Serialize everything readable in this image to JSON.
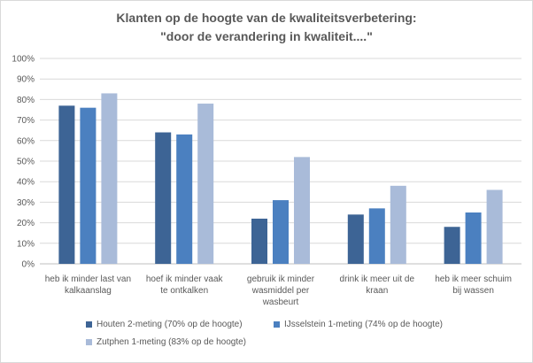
{
  "chart_data": {
    "type": "bar",
    "title_lines": [
      "Klanten op de hoogte van de kwaliteitsverbetering:",
      "\"door de verandering in kwaliteit....\""
    ],
    "categories": [
      "heb ik minder last van kalkaanslag",
      "hoef ik minder vaak te ontkalken",
      "gebruik ik minder wasmiddel per wasbeurt",
      "drink ik meer uit de kraan",
      "heb ik meer schuim bij wassen"
    ],
    "category_lines": [
      [
        "heb ik minder last van",
        "kalkaanslag"
      ],
      [
        "hoef ik minder vaak",
        "te ontkalken"
      ],
      [
        "gebruik ik minder",
        "wasmiddel per",
        "wasbeurt"
      ],
      [
        "drink ik meer uit de",
        "kraan"
      ],
      [
        "heb ik meer schuim",
        "bij wassen"
      ]
    ],
    "series": [
      {
        "name": "Houten 2-meting (70% op de hoogte)",
        "color": "#3d6495",
        "values": [
          77,
          64,
          22,
          24,
          18
        ]
      },
      {
        "name": "IJsselstein 1-meting (74% op de hoogte)",
        "color": "#4b80c0",
        "values": [
          76,
          63,
          31,
          27,
          25
        ]
      },
      {
        "name": "Zutphen 1-meting (83% op de hoogte)",
        "color": "#a9bbd9",
        "values": [
          83,
          78,
          52,
          38,
          36
        ]
      }
    ],
    "y_ticks": [
      "0%",
      "10%",
      "20%",
      "30%",
      "40%",
      "50%",
      "60%",
      "70%",
      "80%",
      "90%",
      "100%"
    ],
    "ylim": [
      0,
      100
    ],
    "grid": true,
    "legend_position": "bottom"
  }
}
